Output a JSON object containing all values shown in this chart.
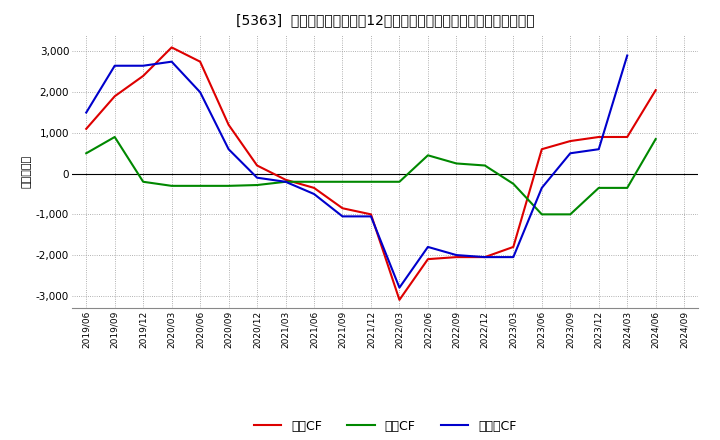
{
  "title": "[5363]  キャッシュフローの12か月移動合計の対前年同期増減額の推移",
  "ylabel": "（百万円）",
  "background_color": "#ffffff",
  "grid_color": "#999999",
  "x_labels": [
    "2019/06",
    "2019/09",
    "2019/12",
    "2020/03",
    "2020/06",
    "2020/09",
    "2020/12",
    "2021/03",
    "2021/06",
    "2021/09",
    "2021/12",
    "2022/03",
    "2022/06",
    "2022/09",
    "2022/12",
    "2023/03",
    "2023/06",
    "2023/09",
    "2023/12",
    "2024/03",
    "2024/06",
    "2024/09"
  ],
  "operating_cf": [
    1100,
    1900,
    2400,
    3100,
    2750,
    1200,
    200,
    -150,
    -350,
    -850,
    -1000,
    -3100,
    -2100,
    -2050,
    -2050,
    -1800,
    600,
    800,
    900,
    900,
    2050,
    null
  ],
  "investing_cf": [
    500,
    900,
    -200,
    -300,
    -300,
    -300,
    -280,
    -200,
    -200,
    -200,
    -200,
    -200,
    450,
    250,
    200,
    -250,
    -1000,
    -1000,
    -350,
    -350,
    850,
    null
  ],
  "free_cf": [
    1500,
    2650,
    2650,
    2750,
    2000,
    600,
    -100,
    -200,
    -500,
    -1050,
    -1050,
    -2800,
    -1800,
    -2000,
    -2050,
    -2050,
    -350,
    500,
    600,
    2900,
    null,
    null
  ],
  "operating_color": "#dd0000",
  "investing_color": "#008800",
  "free_cf_color": "#0000cc",
  "ylim": [
    -3300,
    3400
  ],
  "yticks": [
    -3000,
    -2000,
    -1000,
    0,
    1000,
    2000,
    3000
  ],
  "legend_labels": [
    "営業CF",
    "投資CF",
    "フリーCF"
  ]
}
